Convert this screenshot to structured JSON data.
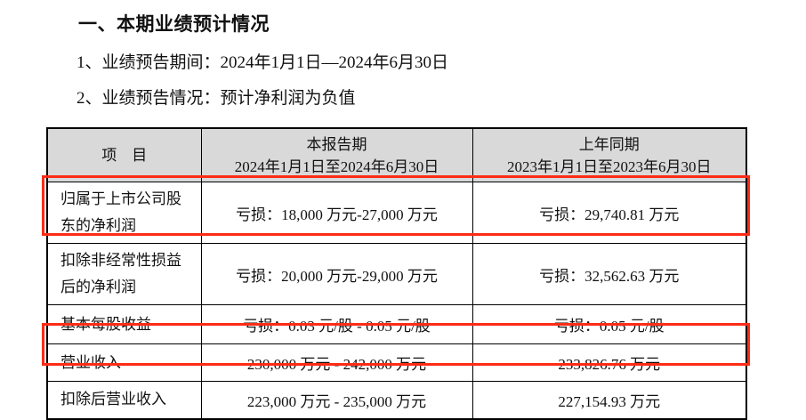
{
  "colors": {
    "highlight_red": "#fe2c16",
    "header_bg": "#d9d9d9",
    "border": "#000000",
    "text": "#111111"
  },
  "doc": {
    "section_title": "一、本期业绩预计情况",
    "forecast_period_line": "1、业绩预告期间：2024年1月1日—2024年6月30日",
    "forecast_summary_line": "2、业绩预告情况：预计净利润为负值"
  },
  "table": {
    "headers": {
      "item": "项　目",
      "current_period": {
        "title": "本报告期",
        "range": "2024年1月1日至2024年6月30日"
      },
      "prior_period": {
        "title": "上年同期",
        "range": "2023年1月1日至2023年6月30日"
      }
    },
    "rows": [
      {
        "item": "归属于上市公司股东的净利润",
        "current": "亏损：18,000 万元-27,000 万元",
        "prior": "亏损：29,740.81 万元",
        "highlighted": true
      },
      {
        "item": "扣除非经常性损益后的净利润",
        "current": "亏损：20,000 万元-29,000 万元",
        "prior": "亏损：32,562.63 万元",
        "highlighted": false
      },
      {
        "item": "基本每股收益",
        "current": "亏损：0.03 元/股 - 0.05 元/股",
        "prior": "亏损：0.05 元/股",
        "highlighted": false
      },
      {
        "item": "营业收入",
        "current": "230,000 万元 - 242,000 万元",
        "prior": "233,826.76 万元",
        "highlighted": true
      },
      {
        "item": "扣除后营业收入",
        "current": "223,000 万元 - 235,000 万元",
        "prior": "227,154.93 万元",
        "highlighted": false
      }
    ]
  }
}
